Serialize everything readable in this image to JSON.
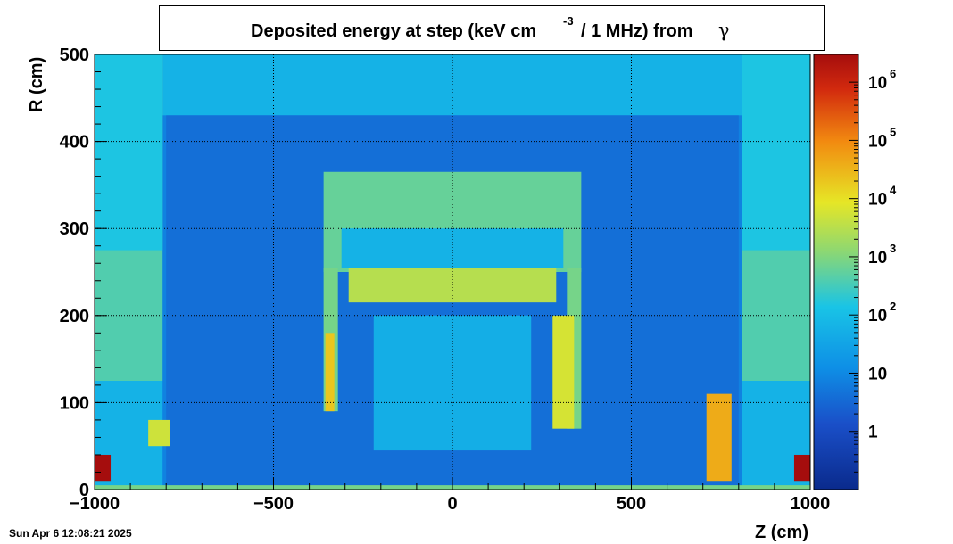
{
  "title": {
    "main": "Deposited energy at step (keV cm",
    "exponent": "-3",
    "rest": "/ 1 MHz)  from",
    "particle": "γ"
  },
  "timestamp": "Sun Apr  6 12:08:21 2025",
  "colors": {
    "low": "#0a2a8c",
    "mid_low": "#1a4fc8",
    "mid": "#19c4e6",
    "green": "#8fd870",
    "yellow": "#e6e626",
    "orange": "#f28a10",
    "high": "#a50d0d"
  },
  "chart_data": {
    "type": "heatmap",
    "title": "Deposited energy at step (keV cm -3 / 1 MHz)  from γ",
    "xlabel": "Z (cm)",
    "ylabel": "R (cm)",
    "xlim": [
      -1000,
      1000
    ],
    "ylim": [
      0,
      500
    ],
    "x_ticks": [
      -1000,
      -500,
      0,
      500,
      1000
    ],
    "x_tick_labels": [
      "−1000",
      "−500",
      "0",
      "500",
      "1000"
    ],
    "y_ticks": [
      0,
      100,
      200,
      300,
      400,
      500
    ],
    "y_tick_labels": [
      "0",
      "100",
      "200",
      "300",
      "400",
      "500"
    ],
    "colorbar": {
      "scale": "log",
      "range": [
        0.1,
        3000000
      ],
      "ticks": [
        1,
        10,
        100,
        1000,
        10000,
        100000,
        1000000
      ],
      "labels": [
        {
          "base": "1",
          "exp": ""
        },
        {
          "base": "10",
          "exp": ""
        },
        {
          "base": "10",
          "exp": "2"
        },
        {
          "base": "10",
          "exp": "3"
        },
        {
          "base": "10",
          "exp": "4"
        },
        {
          "base": "10",
          "exp": "5"
        },
        {
          "base": "10",
          "exp": "6"
        }
      ]
    },
    "grid": true,
    "regions": [
      {
        "z": [
          -1000,
          1000
        ],
        "r": [
          0,
          500
        ],
        "v": 8
      },
      {
        "z": [
          -1000,
          1000
        ],
        "r": [
          430,
          500
        ],
        "v": 60
      },
      {
        "z": [
          -800,
          800
        ],
        "r": [
          0,
          430
        ],
        "v": 4
      },
      {
        "z": [
          -1000,
          -810
        ],
        "r": [
          125,
          500
        ],
        "v": 400
      },
      {
        "z": [
          810,
          1000
        ],
        "r": [
          125,
          500
        ],
        "v": 400
      },
      {
        "z": [
          -1000,
          -810
        ],
        "r": [
          275,
          500
        ],
        "v": 150
      },
      {
        "z": [
          810,
          1000
        ],
        "r": [
          275,
          500
        ],
        "v": 150
      },
      {
        "z": [
          -1000,
          -810
        ],
        "r": [
          0,
          125
        ],
        "v": 60
      },
      {
        "z": [
          810,
          1000
        ],
        "r": [
          0,
          125
        ],
        "v": 60
      },
      {
        "z": [
          -360,
          360
        ],
        "r": [
          250,
          365
        ],
        "v": 600
      },
      {
        "z": [
          -310,
          310
        ],
        "r": [
          255,
          300
        ],
        "v": 60
      },
      {
        "z": [
          -290,
          290
        ],
        "r": [
          215,
          255
        ],
        "v": 3000
      },
      {
        "z": [
          -360,
          -320
        ],
        "r": [
          90,
          255
        ],
        "v": 800
      },
      {
        "z": [
          320,
          360
        ],
        "r": [
          70,
          255
        ],
        "v": 800
      },
      {
        "z": [
          -355,
          -330
        ],
        "r": [
          90,
          180
        ],
        "v": 20000
      },
      {
        "z": [
          280,
          340
        ],
        "r": [
          70,
          200
        ],
        "v": 6000
      },
      {
        "z": [
          -220,
          220
        ],
        "r": [
          45,
          200
        ],
        "v": 50
      },
      {
        "z": [
          -1000,
          -955
        ],
        "r": [
          10,
          40
        ],
        "v": 3000000
      },
      {
        "z": [
          955,
          1000
        ],
        "r": [
          10,
          40
        ],
        "v": 3000000
      },
      {
        "z": [
          -850,
          -790
        ],
        "r": [
          50,
          80
        ],
        "v": 5000
      },
      {
        "z": [
          710,
          780
        ],
        "r": [
          10,
          110
        ],
        "v": 40000
      },
      {
        "z": [
          -1000,
          1000
        ],
        "r": [
          0,
          5
        ],
        "v": 800
      }
    ]
  }
}
